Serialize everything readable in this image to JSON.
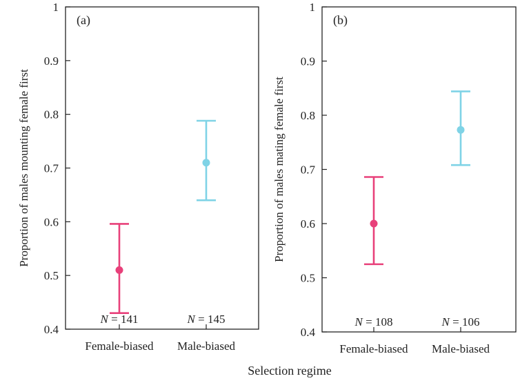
{
  "chart_data": [
    {
      "type": "scatter",
      "panel": "(a)",
      "ylabel": "Proportion of males mounting female first",
      "ylim": [
        0.4,
        1.0
      ],
      "yticks": [
        "0.4",
        "0.5",
        "0.6",
        "0.7",
        "0.8",
        "0.9",
        "1"
      ],
      "categories": [
        "Female-biased",
        "Male-biased"
      ],
      "points": [
        {
          "category": "Female-biased",
          "value": 0.51,
          "ci_low": 0.43,
          "ci_high": 0.596,
          "n_label": "141",
          "color": "#e8407a"
        },
        {
          "category": "Male-biased",
          "value": 0.71,
          "ci_low": 0.64,
          "ci_high": 0.788,
          "n_label": "145",
          "color": "#7fd3e6"
        }
      ]
    },
    {
      "type": "scatter",
      "panel": "(b)",
      "ylabel": "Proportion of males mating female first",
      "ylim": [
        0.4,
        1.0
      ],
      "yticks": [
        "0.4",
        "0.5",
        "0.6",
        "0.7",
        "0.8",
        "0.9",
        "1"
      ],
      "categories": [
        "Female-biased",
        "Male-biased"
      ],
      "points": [
        {
          "category": "Female-biased",
          "value": 0.6,
          "ci_low": 0.525,
          "ci_high": 0.686,
          "n_label": "108",
          "color": "#e8407a"
        },
        {
          "category": "Male-biased",
          "value": 0.773,
          "ci_low": 0.708,
          "ci_high": 0.844,
          "n_label": "106",
          "color": "#7fd3e6"
        }
      ]
    }
  ],
  "n_prefix": "N",
  "n_equals": " = ",
  "xlabel": "Selection  regime"
}
